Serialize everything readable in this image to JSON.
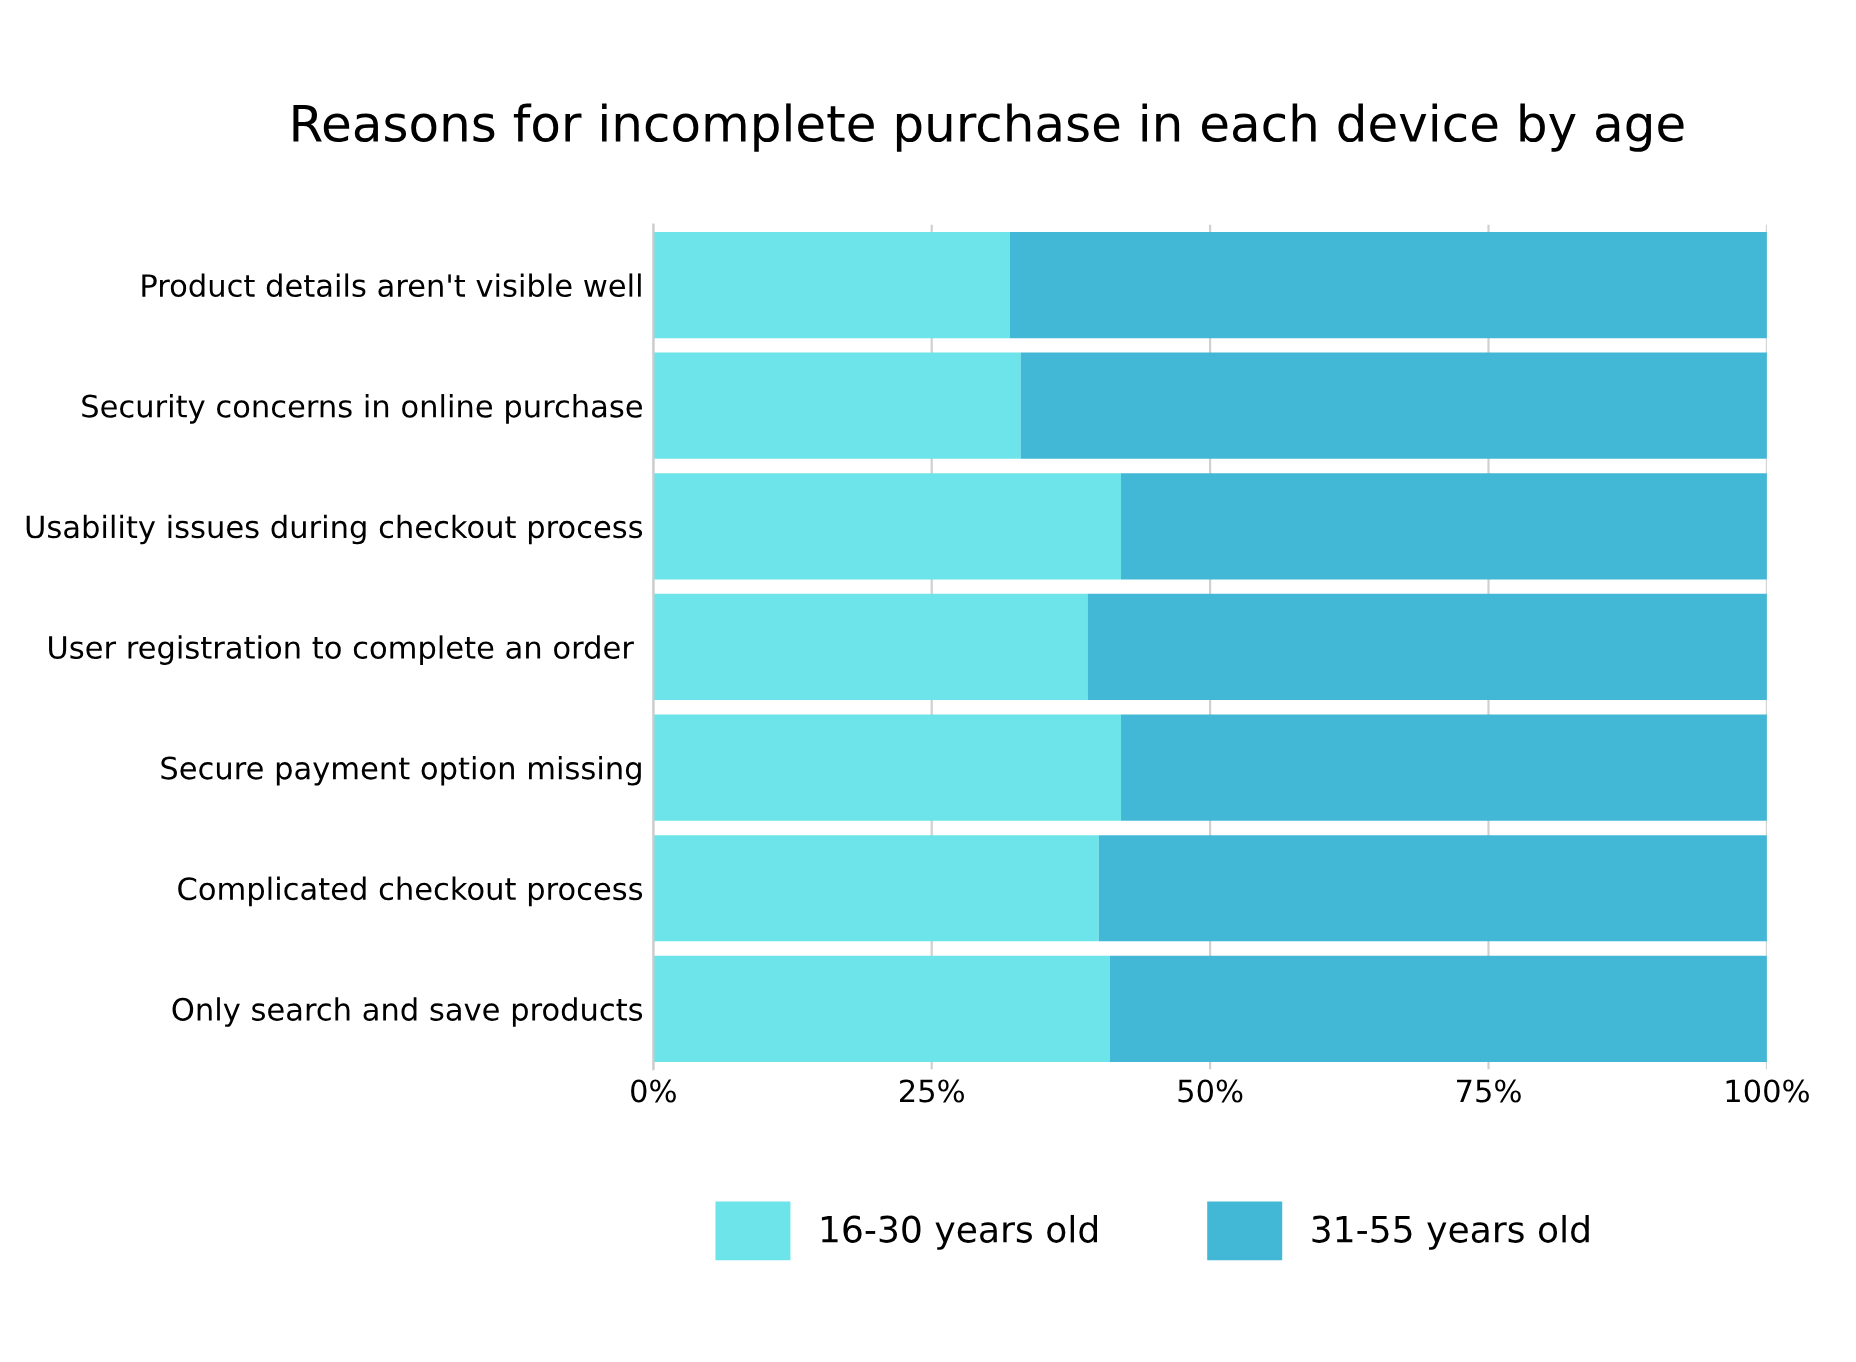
{
  "chart_data": {
    "type": "bar",
    "orientation": "horizontal",
    "stacked": true,
    "title": "Reasons for incomplete purchase in each device by age",
    "categories": [
      "Product details aren't visible well",
      "Security concerns in online purchase",
      "Usability issues during checkout process",
      "User registration to complete an order ",
      "Secure payment option missing",
      "Complicated checkout process",
      "Only search and save products"
    ],
    "series": [
      {
        "name": "16-30 years old",
        "color": "#6ce4e9",
        "values": [
          32,
          33,
          42,
          39,
          42,
          40,
          41
        ]
      },
      {
        "name": "31-55 years old",
        "color": "#42b7d6",
        "values": [
          68,
          67,
          58,
          61,
          58,
          60,
          59
        ]
      }
    ],
    "xlim": [
      0,
      100
    ],
    "xticks": [
      {
        "value": 0,
        "label": "0%"
      },
      {
        "value": 25,
        "label": "25%"
      },
      {
        "value": 50,
        "label": "50%"
      },
      {
        "value": 75,
        "label": "75%"
      },
      {
        "value": 100,
        "label": "100%"
      }
    ],
    "grid": "x",
    "legend": "bottom"
  }
}
